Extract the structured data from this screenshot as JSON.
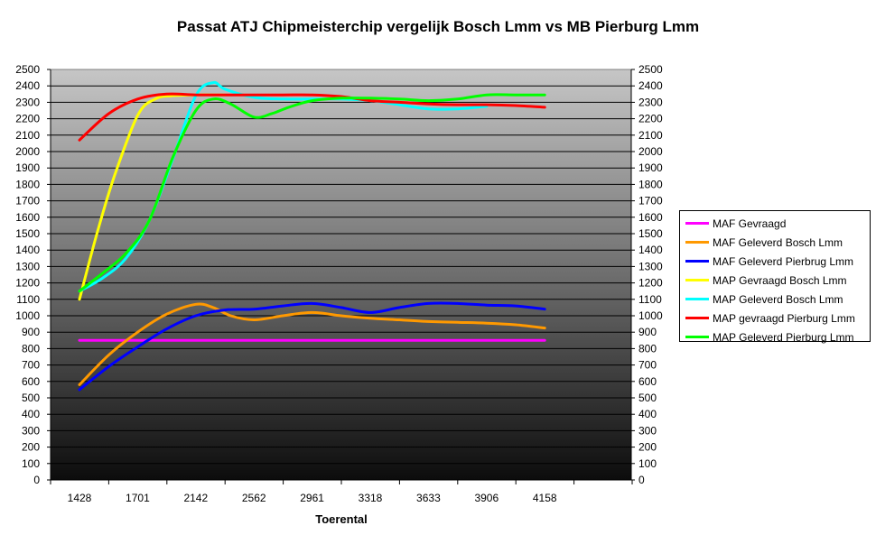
{
  "chart_data": {
    "type": "line",
    "title": "Passat ATJ Chipmeisterchip vergelijk Bosch Lmm vs MB Pierburg Lmm",
    "xlabel": "Toerental",
    "ylabel": "",
    "categories": [
      "1428",
      "1701",
      "2142",
      "2562",
      "2961",
      "3318",
      "3633",
      "3906",
      "4158"
    ],
    "ylim": [
      0,
      2500
    ],
    "ytick_step": 100,
    "grid": true,
    "secondary_y_axis": true,
    "legend_position": "right",
    "series": [
      {
        "name": "MAF Gevraagd",
        "color": "#ff00ff",
        "x": [
          0,
          1,
          2,
          3,
          4,
          5,
          6,
          7,
          8
        ],
        "values": [
          850,
          850,
          850,
          850,
          850,
          850,
          850,
          850,
          850
        ]
      },
      {
        "name": "MAF Geleverd Bosch Lmm",
        "color": "#ff9900",
        "x": [
          0,
          0.5,
          1,
          1.5,
          2,
          2.3,
          2.6,
          3,
          3.5,
          4,
          4.5,
          5,
          5.5,
          6,
          6.5,
          7,
          7.5,
          8
        ],
        "values": [
          580,
          760,
          900,
          1010,
          1070,
          1050,
          1000,
          975,
          1000,
          1020,
          1000,
          985,
          975,
          965,
          960,
          955,
          945,
          925
        ]
      },
      {
        "name": "MAF Geleverd Pierbrug Lmm",
        "color": "#0000ff",
        "x": [
          0,
          0.5,
          1,
          1.5,
          2,
          2.5,
          3,
          3.5,
          4,
          4.5,
          5,
          5.5,
          6,
          6.5,
          7,
          7.5,
          8
        ],
        "values": [
          550,
          690,
          810,
          920,
          1000,
          1035,
          1040,
          1060,
          1075,
          1050,
          1020,
          1050,
          1075,
          1075,
          1065,
          1060,
          1040
        ]
      },
      {
        "name": "MAP Gevraagd Bosch Lmm",
        "color": "#ffff00",
        "x": [
          0,
          0.3,
          0.6,
          1,
          1.3,
          1.6,
          2,
          2.3,
          2.5
        ],
        "values": [
          1100,
          1500,
          1850,
          2220,
          2320,
          2340,
          2345,
          2345,
          2345
        ]
      },
      {
        "name": "MAP Geleverd Bosch Lmm",
        "color": "#00ffff",
        "x": [
          0,
          0.4,
          0.8,
          1.2,
          1.6,
          2,
          2.3,
          2.5,
          3,
          3.5,
          4,
          4.5,
          5,
          5.5,
          6,
          6.5,
          7
        ],
        "values": [
          1150,
          1230,
          1350,
          1580,
          1950,
          2340,
          2420,
          2380,
          2330,
          2320,
          2320,
          2320,
          2310,
          2285,
          2260,
          2260,
          2275
        ]
      },
      {
        "name": "MAP gevraagd Pierburg Lmm",
        "color": "#ff0000",
        "x": [
          0,
          0.5,
          1,
          1.5,
          2,
          2.5,
          3,
          3.5,
          4,
          4.5,
          5,
          5.5,
          6,
          6.5,
          7,
          7.5,
          8
        ],
        "values": [
          2070,
          2230,
          2320,
          2350,
          2345,
          2345,
          2345,
          2345,
          2345,
          2335,
          2310,
          2300,
          2290,
          2285,
          2285,
          2280,
          2270
        ]
      },
      {
        "name": "MAP Geleverd Pierburg Lmm",
        "color": "#00ff00",
        "x": [
          0,
          0.4,
          0.8,
          1.2,
          1.6,
          2,
          2.3,
          2.6,
          3,
          3.3,
          3.6,
          4,
          4.5,
          5,
          5.5,
          6,
          6.5,
          7,
          7.5,
          8
        ],
        "values": [
          1150,
          1260,
          1380,
          1580,
          1960,
          2250,
          2320,
          2290,
          2210,
          2230,
          2270,
          2310,
          2325,
          2325,
          2320,
          2310,
          2320,
          2345,
          2345,
          2345
        ]
      }
    ]
  }
}
